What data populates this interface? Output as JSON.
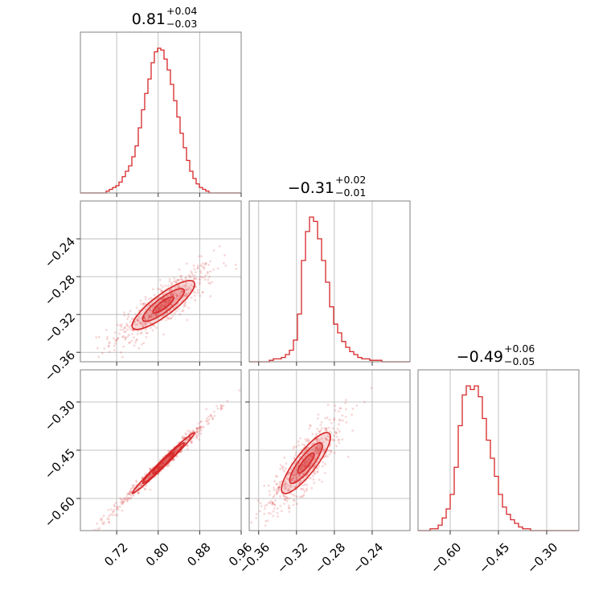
{
  "chart_data": {
    "type": "corner",
    "color": "#d62728",
    "parameters": [
      {
        "title": {
          "main": "0.81",
          "sup": "+0.04",
          "sub": "−0.03"
        },
        "range": [
          0.65,
          0.96
        ],
        "ticks": [
          {
            "v": 0.72,
            "label": "0.72"
          },
          {
            "v": 0.8,
            "label": "0.80"
          },
          {
            "v": 0.88,
            "label": "0.88"
          },
          {
            "v": 0.96,
            "label": "0.96"
          }
        ],
        "histogram": [
          0,
          0,
          0,
          0,
          0,
          0,
          0,
          0,
          0.01,
          0.02,
          0.03,
          0.04,
          0.06,
          0.09,
          0.12,
          0.15,
          0.2,
          0.26,
          0.36,
          0.46,
          0.55,
          0.63,
          0.72,
          0.78,
          0.8,
          0.79,
          0.74,
          0.68,
          0.6,
          0.51,
          0.42,
          0.33,
          0.25,
          0.18,
          0.12,
          0.08,
          0.05,
          0.03,
          0.02,
          0.01,
          0,
          0,
          0,
          0,
          0,
          0,
          0,
          0,
          0,
          0
        ]
      },
      {
        "title": {
          "main": "−0.31",
          "sup": "+0.02",
          "sub": "−0.01"
        },
        "range": [
          -0.37,
          -0.2
        ],
        "ticks": [
          {
            "v": -0.36,
            "label": "−0.36"
          },
          {
            "v": -0.32,
            "label": "−0.32"
          },
          {
            "v": -0.28,
            "label": "−0.28"
          },
          {
            "v": -0.24,
            "label": "−0.24"
          }
        ],
        "histogram": [
          0,
          0,
          0,
          0,
          0,
          0.01,
          0.02,
          0.02,
          0.03,
          0.05,
          0.08,
          0.15,
          0.33,
          0.7,
          0.9,
          1.0,
          0.97,
          0.85,
          0.7,
          0.55,
          0.38,
          0.26,
          0.2,
          0.14,
          0.1,
          0.07,
          0.05,
          0.03,
          0.02,
          0.02,
          0.01,
          0.01,
          0.01,
          0,
          0,
          0,
          0,
          0,
          0,
          0
        ]
      },
      {
        "title": {
          "main": "−0.49",
          "sup": "+0.06",
          "sub": "−0.05"
        },
        "range": [
          -0.7,
          -0.2
        ],
        "ticks": [
          {
            "v": -0.6,
            "label": "−0.60"
          },
          {
            "v": -0.45,
            "label": "−0.45"
          },
          {
            "v": -0.3,
            "label": "−0.30"
          }
        ],
        "histogram": [
          0,
          0,
          0,
          0.01,
          0.01,
          0.03,
          0.07,
          0.12,
          0.2,
          0.35,
          0.58,
          0.75,
          0.8,
          0.78,
          0.8,
          0.74,
          0.62,
          0.5,
          0.4,
          0.3,
          0.2,
          0.13,
          0.09,
          0.06,
          0.04,
          0.02,
          0.01,
          0.01,
          0,
          0,
          0,
          0,
          0,
          0,
          0,
          0,
          0,
          0,
          0,
          0
        ]
      }
    ],
    "correlations": [
      {
        "x": 0,
        "y": 1,
        "rho": 0.85
      },
      {
        "x": 0,
        "y": 2,
        "rho": 0.99
      },
      {
        "x": 1,
        "y": 2,
        "rho": 0.85
      }
    ],
    "contour_levels": [
      0.5,
      1.0,
      1.5
    ],
    "grid": true
  }
}
